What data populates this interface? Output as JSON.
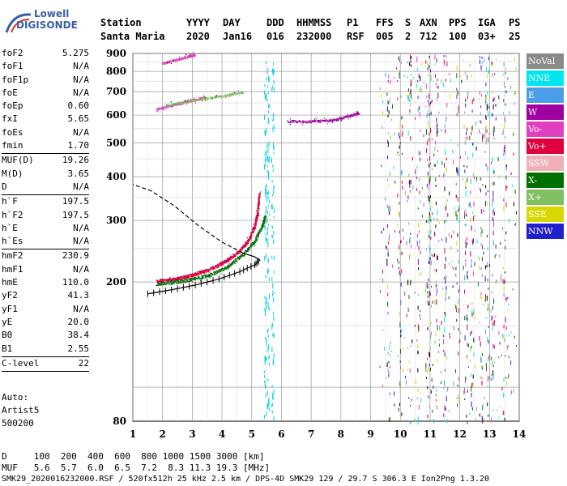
{
  "logo": {
    "line1": "Lowell",
    "line2": "DIGISONDE"
  },
  "header": {
    "labels": [
      "Station",
      "YYYY",
      "DAY",
      "DDD",
      "HHMMSS",
      "P1",
      "FFS",
      "S",
      "AXN",
      "PPS",
      "IGA",
      "PS"
    ],
    "values": [
      "Santa Maria",
      "2020",
      "Jan16",
      "016",
      "232000",
      "RSF",
      "005",
      "2",
      "712",
      "100",
      "03+",
      "25"
    ]
  },
  "params": [
    {
      "k": "foF2",
      "v": "5.275"
    },
    {
      "k": "foF1",
      "v": "N/A"
    },
    {
      "k": "foF1p",
      "v": "N/A"
    },
    {
      "k": "foE",
      "v": "N/A"
    },
    {
      "k": "foEp",
      "v": "0.60"
    },
    {
      "k": "fxI",
      "v": "5.65"
    },
    {
      "k": "foEs",
      "v": "N/A"
    },
    {
      "k": "fmin",
      "v": "1.70"
    },
    {
      "sep": true
    },
    {
      "k": "MUF(D)",
      "v": "19.26"
    },
    {
      "k": "M(D)",
      "v": "3.65"
    },
    {
      "k": "D",
      "v": "N/A"
    },
    {
      "sep": true
    },
    {
      "k": "h`F",
      "v": "197.5"
    },
    {
      "k": "h`F2",
      "v": "197.5"
    },
    {
      "k": "h`E",
      "v": "N/A"
    },
    {
      "k": "h`Es",
      "v": "N/A"
    },
    {
      "sep": true
    },
    {
      "k": "hmF2",
      "v": "230.9"
    },
    {
      "k": "hmF1",
      "v": "N/A"
    },
    {
      "k": "hmE",
      "v": "110.0"
    },
    {
      "k": "yF2",
      "v": "41.3"
    },
    {
      "k": "yF1",
      "v": "N/A"
    },
    {
      "k": "yE",
      "v": "20.0"
    },
    {
      "k": "B0",
      "v": "38.4"
    },
    {
      "k": "B1",
      "v": "2.55"
    },
    {
      "sep": true
    },
    {
      "k": "C-level",
      "v": "22"
    },
    {
      "sep": true
    }
  ],
  "auto": {
    "line1": "Auto:",
    "line2": "Artist5",
    "line3": "500200"
  },
  "legend": [
    {
      "label": "NoVal",
      "color": "#8a8a8a"
    },
    {
      "label": "NNE",
      "color": "#00e5ee"
    },
    {
      "label": "E",
      "color": "#4a9ee8"
    },
    {
      "label": "W",
      "color": "#a000a0"
    },
    {
      "label": "Vo-",
      "color": "#e040c0"
    },
    {
      "label": "Vo+",
      "color": "#e00040"
    },
    {
      "label": "SSW",
      "color": "#f0b0b8"
    },
    {
      "label": "X-",
      "color": "#007000"
    },
    {
      "label": "X+",
      "color": "#80c060"
    },
    {
      "label": "SSE",
      "color": "#d8d800"
    },
    {
      "label": "NNW",
      "color": "#2020d0"
    }
  ],
  "footer": {
    "line1": "D     100  200  400  600  800 1000 1500 3000 [km]",
    "line2": "MUF   5.6  5.7  6.0  6.5  7.2  8.3 11.3 19.3 [MHz]",
    "line3": "SMK29_2020016232000.RSF / 520fx512h 25 kHz 2.5 km / DPS-4D SMK29 129 / 29.7 S 306.3 E Ion2Png 1.3.20"
  },
  "chart_data": {
    "type": "scatter",
    "xlim": [
      1,
      14
    ],
    "ylim": [
      80,
      900
    ],
    "x_ticks": [
      1,
      2,
      3,
      4,
      5,
      6,
      7,
      8,
      9,
      10,
      11,
      12,
      13,
      14
    ],
    "y_ticks": [
      80,
      200,
      300,
      400,
      500,
      600,
      700,
      800,
      900
    ],
    "y_scale": "log",
    "grid": true,
    "traces": [
      {
        "label": "F2 O-trace",
        "color": "#e00040",
        "points": [
          [
            1.8,
            201
          ],
          [
            2.2,
            203
          ],
          [
            2.6,
            206
          ],
          [
            3.0,
            210
          ],
          [
            3.4,
            215
          ],
          [
            3.8,
            222
          ],
          [
            4.2,
            232
          ],
          [
            4.6,
            246
          ],
          [
            4.9,
            265
          ],
          [
            5.1,
            290
          ],
          [
            5.2,
            320
          ],
          [
            5.25,
            360
          ]
        ]
      },
      {
        "label": "F2 X-trace",
        "color": "#007000",
        "points": [
          [
            1.8,
            198
          ],
          [
            2.4,
            200
          ],
          [
            3.0,
            204
          ],
          [
            3.6,
            210
          ],
          [
            4.2,
            222
          ],
          [
            4.7,
            240
          ],
          [
            5.1,
            262
          ],
          [
            5.35,
            290
          ],
          [
            5.45,
            310
          ]
        ]
      },
      {
        "label": "2F O-trace",
        "color": "#e040c0",
        "points": [
          [
            1.8,
            625
          ],
          [
            2.2,
            638
          ],
          [
            2.6,
            650
          ],
          [
            3.0,
            662
          ],
          [
            3.4,
            675
          ]
        ]
      },
      {
        "label": "2F X-trace",
        "color": "#80c060",
        "points": [
          [
            2.1,
            640
          ],
          [
            2.8,
            658
          ],
          [
            3.5,
            672
          ],
          [
            4.2,
            685
          ],
          [
            4.7,
            700
          ]
        ]
      },
      {
        "label": "3F trace",
        "color": "#e040c0",
        "points": [
          [
            2.0,
            845
          ],
          [
            2.4,
            862
          ],
          [
            2.8,
            880
          ],
          [
            3.1,
            895
          ]
        ]
      },
      {
        "label": "W echo",
        "color": "#a000a0",
        "points": [
          [
            6.2,
            577
          ],
          [
            6.8,
            576
          ],
          [
            7.4,
            578
          ],
          [
            7.9,
            585
          ],
          [
            8.3,
            598
          ],
          [
            8.6,
            610
          ]
        ]
      }
    ],
    "profile": {
      "solid": [
        [
          1.5,
          185
        ],
        [
          2.3,
          190
        ],
        [
          3.1,
          196
        ],
        [
          3.9,
          204
        ],
        [
          4.6,
          214
        ],
        [
          5.1,
          224
        ],
        [
          5.275,
          231
        ],
        [
          5.1,
          236
        ],
        [
          4.7,
          242
        ]
      ],
      "dashed": [
        [
          4.7,
          242
        ],
        [
          4.0,
          260
        ],
        [
          3.2,
          290
        ],
        [
          2.4,
          330
        ],
        [
          1.6,
          365
        ],
        [
          1.0,
          380
        ]
      ]
    },
    "interference_bands_mhz": [
      5.45,
      5.55,
      5.7,
      9.6,
      10.0,
      10.3,
      10.6,
      10.9,
      11.0,
      11.2,
      11.5,
      11.9,
      12.2,
      12.4,
      12.7,
      12.9,
      13.1,
      13.5
    ]
  }
}
